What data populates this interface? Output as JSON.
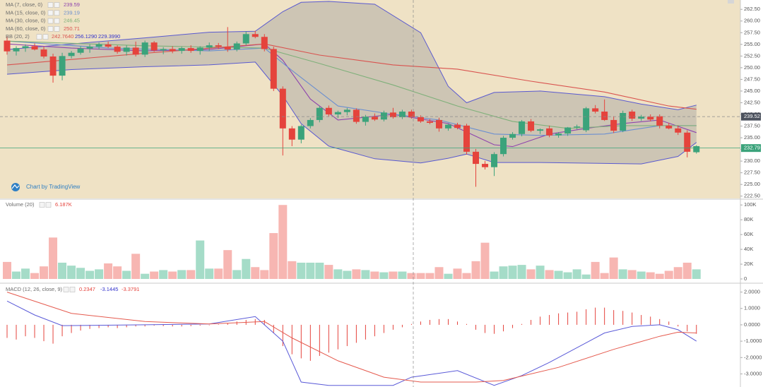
{
  "chart_data": [
    {
      "type": "candlestick",
      "open": [
        255.8,
        253.5,
        254.2,
        254.6,
        253.9,
        252.4,
        248.3,
        252.5,
        253.2,
        254.1,
        254.5,
        255.0,
        254.5,
        253.4,
        254.3,
        252.8,
        255.4,
        253.7,
        254.0,
        253.6,
        254.2,
        253.6,
        254.3,
        254.8,
        254.5,
        253.9,
        255.2,
        257.2,
        256.6,
        254.0,
        245.5,
        237.0,
        234.6,
        237.5,
        238.8,
        241.4,
        240.0,
        240.5,
        241.0,
        238.4,
        239.5,
        238.9,
        240.4,
        239.4,
        240.6,
        239.4,
        238.5,
        238.8,
        237.0,
        237.8,
        237.6,
        232.0,
        229.4,
        228.7,
        231.5,
        235.0,
        235.8,
        238.5,
        236.5,
        237.0,
        235.5,
        235.9,
        237.2,
        236.6,
        241.3,
        240.6,
        238.8,
        236.5,
        240.6,
        239.1,
        239.5,
        239.6,
        237.6,
        237.0,
        236.1,
        231.9
      ],
      "high": [
        256.6,
        254.6,
        255.0,
        255.2,
        254.5,
        253.0,
        253.2,
        253.6,
        254.6,
        255.0,
        255.4,
        255.6,
        254.8,
        254.8,
        255.6,
        255.8,
        255.7,
        254.4,
        254.6,
        254.5,
        254.8,
        254.6,
        255.4,
        255.3,
        258.7,
        255.6,
        257.8,
        257.9,
        257.2,
        254.5,
        246.0,
        237.5,
        237.8,
        239.2,
        241.8,
        241.9,
        240.8,
        241.4,
        241.3,
        239.9,
        240.2,
        240.8,
        241.4,
        241.0,
        241.0,
        239.8,
        239.0,
        239.3,
        238.0,
        238.2,
        238.0,
        232.6,
        230.0,
        231.9,
        235.4,
        236.2,
        238.8,
        239.0,
        237.0,
        237.6,
        236.2,
        237.3,
        237.8,
        241.6,
        242.0,
        243.2,
        239.6,
        240.8,
        241.0,
        239.9,
        240.0,
        240.0,
        238.2,
        237.6,
        236.6,
        233.4
      ],
      "low": [
        252.8,
        252.6,
        253.4,
        253.7,
        252.0,
        246.8,
        247.3,
        252.0,
        252.8,
        253.2,
        253.9,
        254.2,
        253.0,
        252.6,
        252.4,
        252.3,
        253.4,
        252.9,
        253.1,
        253.0,
        253.2,
        252.8,
        253.6,
        254.0,
        253.4,
        253.5,
        254.8,
        256.3,
        253.5,
        245.0,
        231.2,
        233.2,
        233.8,
        237.0,
        238.3,
        239.6,
        239.2,
        239.8,
        238.0,
        237.6,
        238.6,
        238.5,
        239.1,
        239.0,
        239.1,
        238.2,
        237.9,
        236.3,
        236.5,
        236.8,
        231.4,
        224.5,
        228.2,
        226.8,
        231.0,
        234.6,
        235.3,
        236.2,
        235.8,
        235.1,
        235.0,
        235.4,
        236.8,
        236.2,
        240.2,
        238.6,
        236.0,
        236.2,
        238.6,
        238.6,
        238.5,
        237.0,
        236.8,
        235.6,
        230.8,
        231.6
      ],
      "close": [
        253.5,
        254.2,
        254.6,
        253.9,
        252.4,
        248.3,
        252.5,
        253.2,
        254.1,
        254.5,
        255.0,
        254.5,
        253.4,
        254.3,
        252.8,
        255.4,
        253.7,
        254.0,
        253.6,
        254.2,
        253.6,
        254.3,
        254.8,
        254.5,
        253.9,
        255.2,
        257.2,
        256.6,
        254.0,
        245.5,
        237.0,
        234.6,
        237.5,
        238.8,
        241.4,
        240.0,
        240.5,
        241.0,
        238.4,
        239.5,
        238.9,
        240.4,
        239.4,
        240.6,
        239.4,
        238.5,
        238.2,
        237.0,
        237.8,
        237.1,
        232.0,
        229.4,
        228.7,
        231.5,
        235.0,
        235.8,
        238.5,
        236.5,
        236.8,
        235.5,
        235.9,
        237.2,
        237.4,
        241.3,
        240.6,
        238.8,
        236.5,
        240.3,
        239.1,
        239.5,
        238.9,
        237.6,
        237.0,
        236.1,
        232.0,
        233.2
      ],
      "up_color": "#3ba37b",
      "down_color": "#e5433c",
      "ylim": [
        222,
        264.5
      ],
      "yticks": [
        {
          "value": 222.5,
          "label": "222.50"
        },
        {
          "value": 225,
          "label": "225.00"
        },
        {
          "value": 227.5,
          "label": "227.50"
        },
        {
          "value": 230,
          "label": "230.00"
        },
        {
          "value": 232.5,
          "label": "232.50"
        },
        {
          "value": 235,
          "label": "235.00"
        },
        {
          "value": 237.5,
          "label": "237.50"
        },
        {
          "value": 240,
          "label": "240.00"
        },
        {
          "value": 242.5,
          "label": "242.50"
        },
        {
          "value": 245,
          "label": "245.00"
        },
        {
          "value": 247.5,
          "label": "247.50"
        },
        {
          "value": 250,
          "label": "250.00"
        },
        {
          "value": 252.5,
          "label": "252.50"
        },
        {
          "value": 255,
          "label": "255.00"
        },
        {
          "value": 257.5,
          "label": "257.50"
        },
        {
          "value": 260,
          "label": "260.00"
        },
        {
          "value": 262.5,
          "label": "262.50"
        }
      ],
      "series": [
        {
          "name": "MA (7, close, 0)",
          "legend_value": "239.59",
          "color": "#8e44ad",
          "x": [
            0,
            7,
            15,
            22,
            28,
            30,
            33,
            36,
            42,
            48,
            53,
            55,
            59,
            63,
            67,
            71,
            75
          ],
          "values": [
            255.1,
            254.2,
            253.6,
            253.9,
            255.1,
            251.6,
            243.3,
            238.8,
            240.0,
            238.05,
            233.5,
            233.1,
            235.8,
            237.0,
            238.05,
            238.8,
            236.1
          ]
        },
        {
          "name": "MA (15, close, 0)",
          "legend_value": "239.19",
          "color": "#6b8fd0",
          "x": [
            0,
            11,
            22,
            28,
            31,
            36,
            41,
            47,
            53,
            58,
            65,
            71,
            75
          ],
          "values": [
            255.7,
            254.2,
            253.6,
            254.2,
            249.4,
            241.8,
            240.3,
            238.8,
            235.8,
            235.5,
            235.8,
            237.6,
            237.6
          ]
        },
        {
          "name": "MA (30, close, 0)",
          "legend_value": "246.45",
          "color": "#7fb07a",
          "x": [
            0,
            15,
            28,
            34,
            42,
            49,
            55,
            61,
            67,
            75
          ],
          "values": [
            255.7,
            254.7,
            254.2,
            250.9,
            246.3,
            241.8,
            238.5,
            237.0,
            237.6,
            237.6
          ]
        },
        {
          "name": "MA (60, close, 0)",
          "legend_value": "250.71",
          "color": "#d9534f",
          "x": [
            0,
            15,
            28,
            34,
            42,
            49,
            57,
            65,
            72,
            75
          ],
          "values": [
            250.6,
            253.1,
            255.1,
            252.7,
            250.6,
            249.7,
            247.1,
            244.8,
            241.8,
            241.1
          ]
        }
      ],
      "bands": {
        "name": "BB (20, 2)",
        "legend_values": [
          "242.7640",
          "256.1290",
          "229.3990"
        ],
        "legend_colors": [
          "#d9534f",
          "#3333cc",
          "#3333cc"
        ],
        "color": "#5a5ad0",
        "fill": "#9a9a9a",
        "x": [
          0,
          7,
          15,
          22,
          27,
          30,
          32,
          35,
          40,
          45,
          48,
          50,
          53,
          58,
          65,
          69,
          73,
          75
        ],
        "upper": [
          253.9,
          255.1,
          256.4,
          257.6,
          257.8,
          262.0,
          264.0,
          264.2,
          263.6,
          257.5,
          246.0,
          242.5,
          244.7,
          245.0,
          243.8,
          242.2,
          241.0,
          242.0
        ],
        "lower": [
          248.6,
          249.6,
          250.2,
          250.6,
          251.2,
          244.0,
          238.0,
          233.2,
          230.5,
          229.6,
          230.6,
          231.5,
          229.7,
          229.7,
          229.5,
          229.4,
          231.0,
          234.0
        ]
      },
      "last_price": 232.79,
      "crosshair_price": 239.52,
      "watermark": "Chart by TradingView"
    },
    {
      "type": "bar",
      "title": "Volume (20)",
      "legend_value": "6.187K",
      "up_color": "#a5dcc8",
      "down_color": "#f7b6b2",
      "values": [
        23000,
        10000,
        14000,
        8000,
        17000,
        56000,
        22000,
        18000,
        15000,
        11000,
        13000,
        21000,
        17000,
        11000,
        34000,
        7000,
        10000,
        12000,
        10000,
        12000,
        12000,
        52000,
        14000,
        14000,
        39000,
        12000,
        27000,
        16000,
        12000,
        62000,
        100000,
        24000,
        22000,
        22000,
        22000,
        19000,
        13000,
        11000,
        13000,
        12000,
        10000,
        9000,
        10000,
        10000,
        8000,
        8000,
        8000,
        16000,
        7000,
        14000,
        8000,
        24000,
        49000,
        10000,
        17000,
        18000,
        19000,
        13000,
        18000,
        12000,
        11000,
        9000,
        13000,
        6000,
        23000,
        8000,
        29000,
        13000,
        12000,
        10000,
        9000,
        7000,
        11000,
        16000,
        22000,
        13000
      ],
      "ylim": [
        0,
        105000
      ],
      "yticks": [
        0,
        {
          "value": 20000,
          "label": "20K"
        },
        {
          "value": 40000,
          "label": "40K"
        },
        {
          "value": 60000,
          "label": "60K"
        },
        {
          "value": 80000,
          "label": "80K"
        },
        {
          "value": 100000,
          "label": "100K"
        }
      ]
    },
    {
      "type": "macd",
      "title": "MACD (12, 26, close, 9)",
      "legend_values": [
        "0.2347",
        "-3.1445",
        "-3.3791"
      ],
      "legend_colors": [
        "#e5433c",
        "#3333cc",
        "#e5433c"
      ],
      "histogram": {
        "color": "#e5433c",
        "values": [
          -0.8,
          -0.9,
          -0.7,
          -0.8,
          -1.0,
          -1.15,
          -0.7,
          -0.5,
          -0.35,
          -0.25,
          -0.2,
          -0.15,
          -0.2,
          -0.15,
          -0.1,
          -0.1,
          -0.05,
          -0.08,
          -0.1,
          -0.1,
          -0.08,
          -0.05,
          -0.03,
          0.03,
          0.1,
          0.2,
          0.3,
          0.35,
          0.3,
          -0.5,
          -1.3,
          -1.8,
          -2.05,
          -2.2,
          -1.9,
          -1.7,
          -1.5,
          -1.3,
          -1.1,
          -0.9,
          -0.7,
          -0.5,
          -0.3,
          -0.15,
          0.05,
          0.2,
          0.3,
          0.35,
          0.35,
          0.2,
          0.05,
          -0.3,
          -0.5,
          -0.55,
          -0.4,
          -0.2,
          0.05,
          0.3,
          0.5,
          0.6,
          0.7,
          0.75,
          0.8,
          0.95,
          1.05,
          1.05,
          0.9,
          0.85,
          0.75,
          0.6,
          0.5,
          0.35,
          0.2,
          -0.1,
          -0.4,
          -0.55
        ]
      },
      "series": [
        {
          "color": "#5a5ad8",
          "x": [
            0,
            3,
            6,
            15,
            22,
            27,
            30,
            32,
            35,
            42,
            44,
            49,
            53,
            56,
            59,
            63,
            65,
            68,
            71,
            73,
            75
          ],
          "values": [
            1.45,
            0.6,
            -0.05,
            0.0,
            0.05,
            0.5,
            -1.0,
            -3.5,
            -3.7,
            -3.7,
            -3.2,
            -2.8,
            -3.7,
            -3.1,
            -2.3,
            -1.1,
            -0.5,
            -0.1,
            0.0,
            -0.3,
            -1.0
          ]
        },
        {
          "color": "#e55a4e",
          "x": [
            0,
            7,
            15,
            22,
            28,
            31,
            36,
            41,
            45,
            51,
            54,
            60,
            66,
            71,
            73,
            75
          ],
          "values": [
            2.0,
            0.7,
            0.2,
            0.05,
            0.2,
            -0.8,
            -2.2,
            -3.2,
            -3.5,
            -3.5,
            -3.4,
            -2.6,
            -1.5,
            -0.7,
            -0.45,
            -0.5
          ]
        }
      ],
      "ylim": [
        -3.8,
        2.5
      ],
      "yticks": [
        {
          "value": 2,
          "label": "2.0000"
        },
        {
          "value": 1,
          "label": "1.0000"
        },
        {
          "value": 0,
          "label": "0.0000"
        },
        {
          "value": -1,
          "label": "-1.0000"
        },
        {
          "value": -2,
          "label": "-2.0000"
        },
        {
          "value": -3,
          "label": "-3.0000"
        }
      ]
    }
  ]
}
